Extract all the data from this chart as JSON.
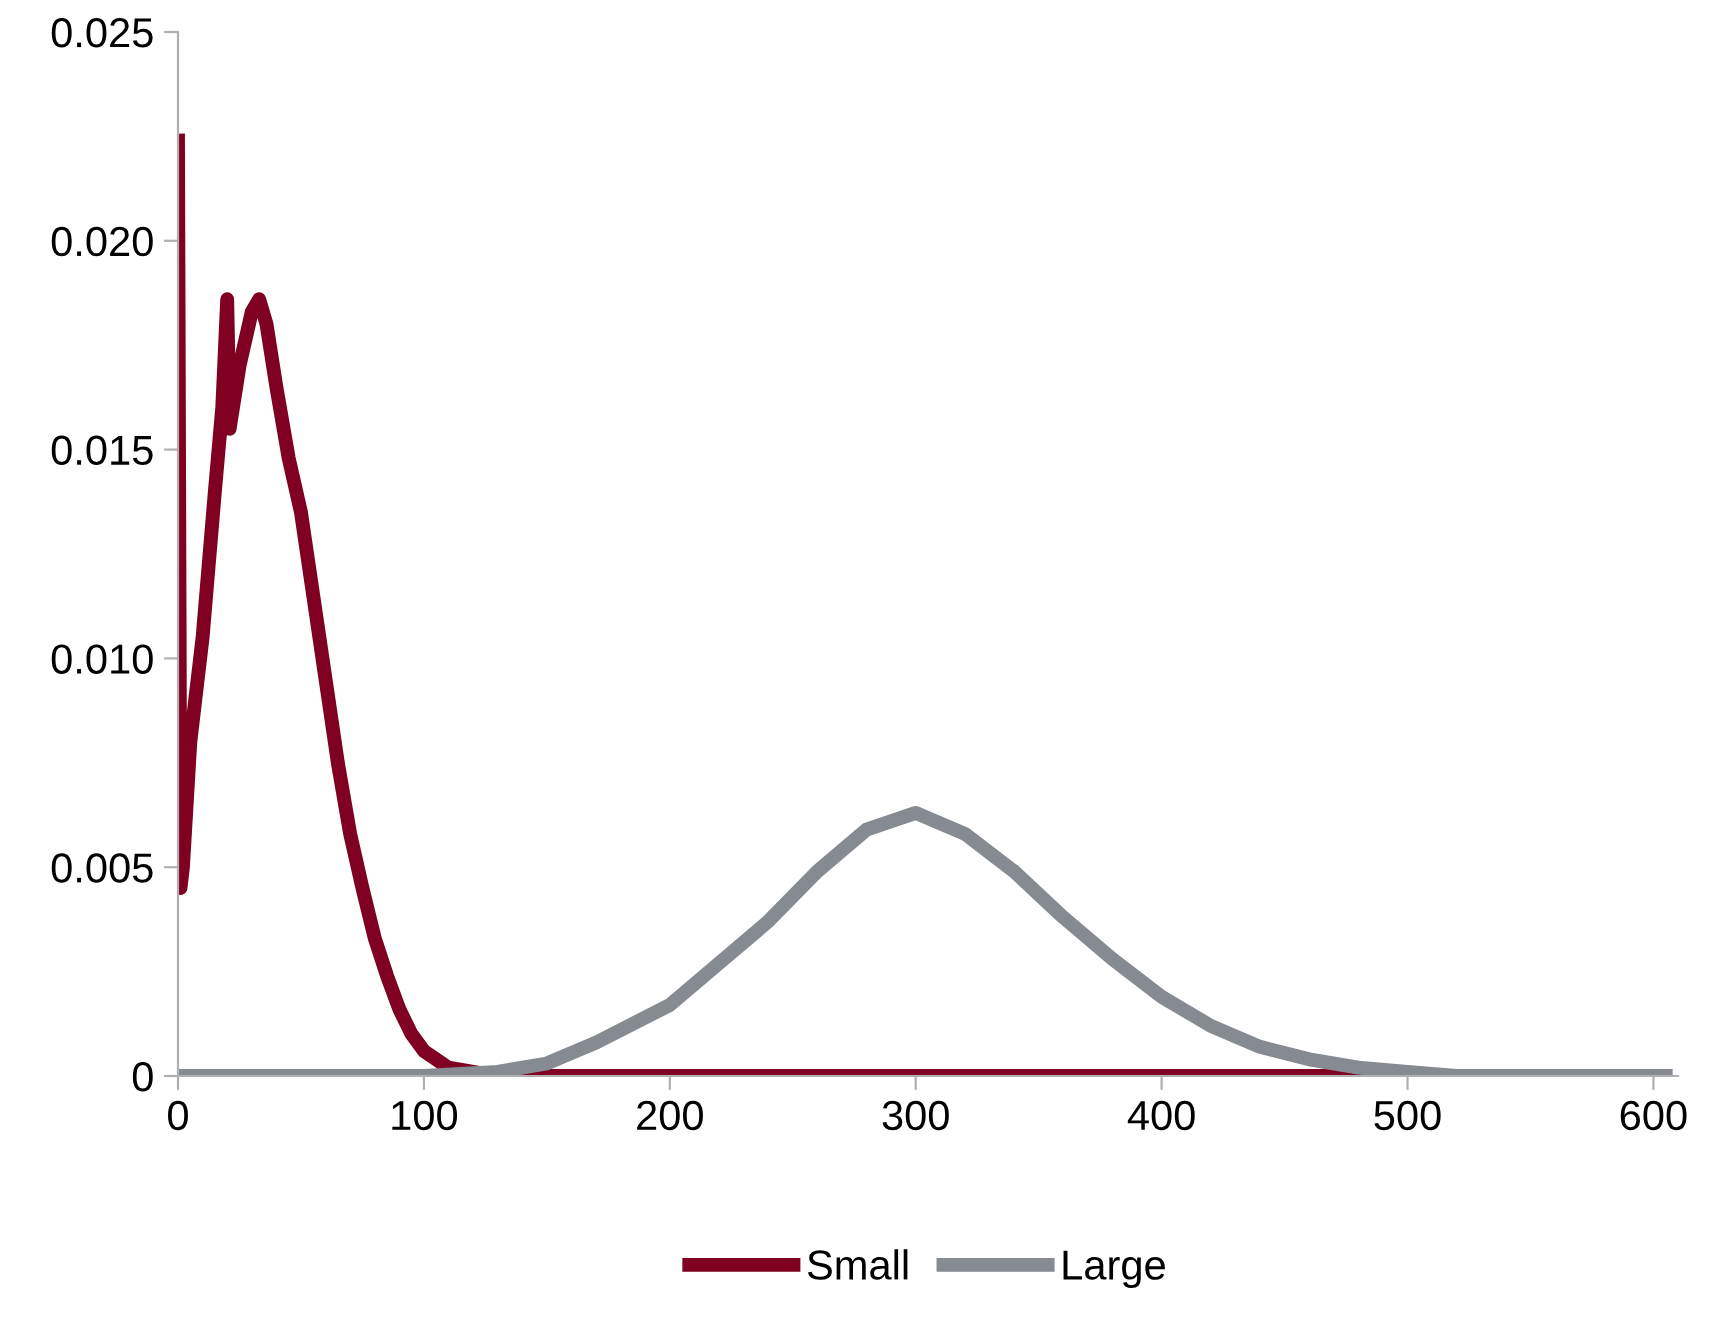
{
  "chart_data": {
    "type": "line",
    "xlim": [
      0,
      610
    ],
    "xticks": [
      0,
      100,
      200,
      300,
      400,
      500,
      600
    ],
    "ylim": [
      0,
      0.025
    ],
    "yticks": [
      {
        "value": 0,
        "label": "0"
      },
      {
        "value": 0.005,
        "label": "0.005"
      },
      {
        "value": 0.01,
        "label": "0.010"
      },
      {
        "value": 0.015,
        "label": "0.015"
      },
      {
        "value": 0.02,
        "label": "0.020"
      },
      {
        "value": 0.025,
        "label": "0.025"
      }
    ],
    "grid": false,
    "legend": "bottom",
    "marker": "none",
    "line_style": "solid",
    "series": [
      {
        "name": "Small",
        "color": "#7f0020",
        "x": [
          0,
          1,
          2,
          5,
          10,
          15,
          18,
          20,
          21,
          25,
          30,
          33,
          36,
          40,
          45,
          50,
          55,
          60,
          65,
          70,
          75,
          80,
          85,
          90,
          95,
          100,
          110,
          120,
          130,
          200,
          300,
          400,
          515
        ],
        "values": [
          0.0224,
          0.0045,
          0.005,
          0.008,
          0.0105,
          0.014,
          0.016,
          0.0186,
          0.0155,
          0.017,
          0.0183,
          0.0186,
          0.018,
          0.0165,
          0.0148,
          0.0135,
          0.0115,
          0.0095,
          0.0075,
          0.0058,
          0.0045,
          0.0033,
          0.0024,
          0.0016,
          0.001,
          0.0006,
          0.0002,
          0.0001,
          0,
          0,
          0,
          0,
          0
        ]
      },
      {
        "name": "Large",
        "color": "#868b91",
        "x": [
          0,
          100,
          130,
          150,
          170,
          200,
          220,
          240,
          260,
          280,
          300,
          320,
          340,
          360,
          380,
          400,
          420,
          440,
          460,
          480,
          500,
          520,
          605
        ],
        "values": [
          0,
          0,
          0.0001,
          0.0003,
          0.0008,
          0.0017,
          0.0027,
          0.0037,
          0.0049,
          0.0059,
          0.0063,
          0.0058,
          0.0049,
          0.0038,
          0.0028,
          0.0019,
          0.0012,
          0.0007,
          0.0004,
          0.0002,
          0.0001,
          0,
          0
        ]
      }
    ]
  }
}
